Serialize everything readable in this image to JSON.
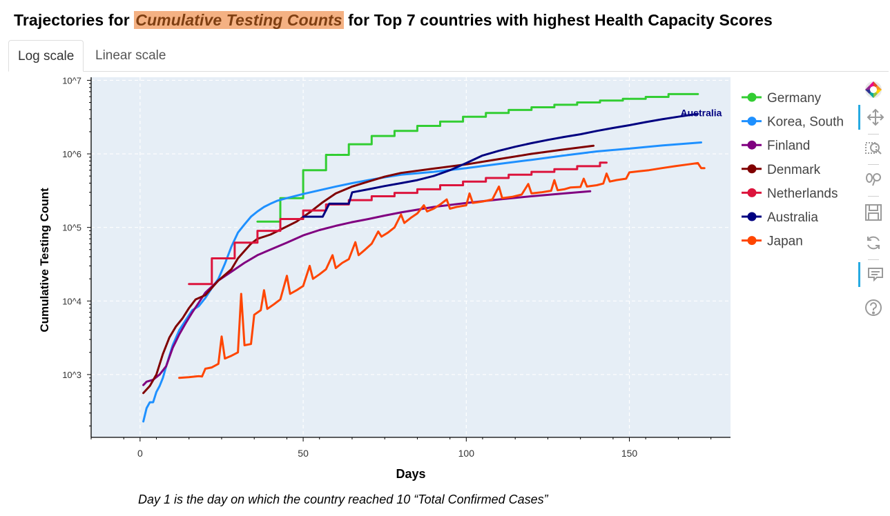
{
  "title": {
    "prefix": "Trajectories for ",
    "highlight": "Cumulative Testing Counts",
    "suffix": " for Top 7 countries with highest Health Capacity Scores"
  },
  "tabs": [
    {
      "label": "Log scale",
      "active": true
    },
    {
      "label": "Linear scale",
      "active": false
    }
  ],
  "footnote": "Day 1 is the day on which the country reached 10 “Total Confirmed Cases”",
  "toolbar": {
    "icons": [
      "bokeh-logo-icon",
      "pan-icon",
      "box-zoom-icon",
      "wheel-zoom-icon",
      "save-icon",
      "reset-icon",
      "hover-icon",
      "help-icon"
    ]
  },
  "chart_data": {
    "type": "line",
    "xlabel": "Days",
    "ylabel": "Cumulative Testing Count",
    "xlim": [
      -15,
      181
    ],
    "ylim": [
      140,
      11000000
    ],
    "y_scale": "log",
    "x_ticks": [
      0,
      50,
      100,
      150
    ],
    "x_tick_labels": [
      "0",
      "50",
      "100",
      "150"
    ],
    "y_ticks": [
      1000,
      10000,
      100000,
      1000000,
      10000000
    ],
    "y_tick_labels": [
      "10^3",
      "10^4",
      "10^5",
      "10^6",
      "10^7"
    ],
    "grid": true,
    "legend_position": "right",
    "annotations": [
      {
        "text": "Australia",
        "x": 172,
        "y": 3600000,
        "color": "#000080"
      }
    ],
    "series": [
      {
        "name": "Germany",
        "color": "#32cd32",
        "step": true,
        "points": [
          [
            36,
            120000
          ],
          [
            43,
            120000
          ],
          [
            43,
            250000
          ],
          [
            50,
            250000
          ],
          [
            50,
            600000
          ],
          [
            57,
            600000
          ],
          [
            57,
            970000
          ],
          [
            64,
            970000
          ],
          [
            64,
            1350000
          ],
          [
            71,
            1350000
          ],
          [
            71,
            1750000
          ],
          [
            78,
            1750000
          ],
          [
            78,
            2050000
          ],
          [
            85,
            2050000
          ],
          [
            85,
            2400000
          ],
          [
            92,
            2400000
          ],
          [
            92,
            2750000
          ],
          [
            99,
            2750000
          ],
          [
            99,
            3200000
          ],
          [
            106,
            3200000
          ],
          [
            106,
            3600000
          ],
          [
            113,
            3600000
          ],
          [
            113,
            3950000
          ],
          [
            120,
            3950000
          ],
          [
            120,
            4300000
          ],
          [
            127,
            4300000
          ],
          [
            127,
            4650000
          ],
          [
            134,
            4650000
          ],
          [
            134,
            5000000
          ],
          [
            141,
            5000000
          ],
          [
            141,
            5300000
          ],
          [
            148,
            5300000
          ],
          [
            148,
            5600000
          ],
          [
            155,
            5600000
          ],
          [
            155,
            5950000
          ],
          [
            162,
            5950000
          ],
          [
            162,
            6500000
          ],
          [
            171,
            6500000
          ]
        ]
      },
      {
        "name": "Korea, South",
        "color": "#1e90ff",
        "step": false,
        "points": [
          [
            1,
            230
          ],
          [
            2,
            350
          ],
          [
            3,
            420
          ],
          [
            4,
            420
          ],
          [
            5,
            580
          ],
          [
            6,
            700
          ],
          [
            7,
            900
          ],
          [
            8,
            1300
          ],
          [
            10,
            2500
          ],
          [
            12,
            4000
          ],
          [
            14,
            5500
          ],
          [
            16,
            7500
          ],
          [
            18,
            8500
          ],
          [
            20,
            11000
          ],
          [
            22,
            15000
          ],
          [
            24,
            20000
          ],
          [
            26,
            32000
          ],
          [
            28,
            55000
          ],
          [
            30,
            85000
          ],
          [
            32,
            110000
          ],
          [
            34,
            140000
          ],
          [
            36,
            165000
          ],
          [
            38,
            190000
          ],
          [
            40,
            210000
          ],
          [
            42,
            230000
          ],
          [
            45,
            250000
          ],
          [
            50,
            285000
          ],
          [
            55,
            320000
          ],
          [
            60,
            360000
          ],
          [
            65,
            400000
          ],
          [
            70,
            440000
          ],
          [
            75,
            480000
          ],
          [
            80,
            520000
          ],
          [
            90,
            570000
          ],
          [
            100,
            640000
          ],
          [
            110,
            730000
          ],
          [
            120,
            830000
          ],
          [
            130,
            950000
          ],
          [
            140,
            1080000
          ],
          [
            150,
            1180000
          ],
          [
            160,
            1300000
          ],
          [
            172,
            1430000
          ]
        ]
      },
      {
        "name": "Finland",
        "color": "#800080",
        "step": false,
        "points": [
          [
            1,
            720
          ],
          [
            2,
            800
          ],
          [
            4,
            850
          ],
          [
            6,
            1000
          ],
          [
            8,
            1300
          ],
          [
            10,
            2300
          ],
          [
            12,
            3500
          ],
          [
            14,
            5000
          ],
          [
            16,
            7000
          ],
          [
            18,
            9500
          ],
          [
            20,
            13000
          ],
          [
            24,
            19000
          ],
          [
            28,
            25000
          ],
          [
            32,
            33000
          ],
          [
            36,
            42000
          ],
          [
            40,
            50000
          ],
          [
            45,
            62000
          ],
          [
            50,
            78000
          ],
          [
            55,
            92000
          ],
          [
            60,
            105000
          ],
          [
            65,
            118000
          ],
          [
            70,
            130000
          ],
          [
            75,
            145000
          ],
          [
            80,
            160000
          ],
          [
            90,
            190000
          ],
          [
            100,
            215000
          ],
          [
            110,
            240000
          ],
          [
            120,
            265000
          ],
          [
            130,
            290000
          ],
          [
            138,
            310000
          ]
        ]
      },
      {
        "name": "Denmark",
        "color": "#800000",
        "step": false,
        "points": [
          [
            1,
            560
          ],
          [
            3,
            700
          ],
          [
            5,
            1000
          ],
          [
            7,
            1900
          ],
          [
            9,
            3200
          ],
          [
            11,
            4500
          ],
          [
            13,
            5800
          ],
          [
            15,
            8000
          ],
          [
            17,
            10500
          ],
          [
            20,
            12000
          ],
          [
            24,
            19000
          ],
          [
            28,
            27000
          ],
          [
            30,
            38000
          ],
          [
            32,
            48000
          ],
          [
            34,
            60000
          ],
          [
            36,
            70000
          ],
          [
            40,
            80000
          ],
          [
            44,
            98000
          ],
          [
            48,
            120000
          ],
          [
            52,
            160000
          ],
          [
            56,
            220000
          ],
          [
            60,
            290000
          ],
          [
            65,
            360000
          ],
          [
            70,
            420000
          ],
          [
            75,
            490000
          ],
          [
            80,
            550000
          ],
          [
            90,
            630000
          ],
          [
            100,
            720000
          ],
          [
            110,
            850000
          ],
          [
            120,
            1000000
          ],
          [
            130,
            1150000
          ],
          [
            139,
            1290000
          ]
        ]
      },
      {
        "name": "Netherlands",
        "color": "#dc143c",
        "step": true,
        "points": [
          [
            15,
            17000
          ],
          [
            22,
            17000
          ],
          [
            22,
            38000
          ],
          [
            29,
            38000
          ],
          [
            29,
            62000
          ],
          [
            36,
            62000
          ],
          [
            36,
            90000
          ],
          [
            43,
            90000
          ],
          [
            43,
            130000
          ],
          [
            50,
            130000
          ],
          [
            50,
            170000
          ],
          [
            57,
            170000
          ],
          [
            57,
            205000
          ],
          [
            64,
            205000
          ],
          [
            64,
            235000
          ],
          [
            71,
            235000
          ],
          [
            71,
            265000
          ],
          [
            78,
            265000
          ],
          [
            78,
            295000
          ],
          [
            85,
            295000
          ],
          [
            85,
            330000
          ],
          [
            92,
            330000
          ],
          [
            92,
            375000
          ],
          [
            99,
            375000
          ],
          [
            99,
            420000
          ],
          [
            106,
            420000
          ],
          [
            106,
            470000
          ],
          [
            113,
            470000
          ],
          [
            113,
            520000
          ],
          [
            120,
            520000
          ],
          [
            120,
            570000
          ],
          [
            127,
            570000
          ],
          [
            127,
            620000
          ],
          [
            134,
            620000
          ],
          [
            134,
            680000
          ],
          [
            141,
            680000
          ],
          [
            141,
            760000
          ],
          [
            143,
            760000
          ]
        ]
      },
      {
        "name": "Australia",
        "color": "#000080",
        "step": false,
        "points": [
          [
            50,
            140000
          ],
          [
            56,
            140000
          ],
          [
            58,
            210000
          ],
          [
            64,
            210000
          ],
          [
            65,
            300000
          ],
          [
            70,
            330000
          ],
          [
            75,
            365000
          ],
          [
            80,
            400000
          ],
          [
            85,
            440000
          ],
          [
            90,
            500000
          ],
          [
            95,
            600000
          ],
          [
            100,
            750000
          ],
          [
            105,
            950000
          ],
          [
            110,
            1100000
          ],
          [
            115,
            1250000
          ],
          [
            120,
            1400000
          ],
          [
            125,
            1550000
          ],
          [
            130,
            1700000
          ],
          [
            135,
            1850000
          ],
          [
            140,
            2050000
          ],
          [
            145,
            2250000
          ],
          [
            150,
            2450000
          ],
          [
            155,
            2700000
          ],
          [
            160,
            2950000
          ],
          [
            165,
            3200000
          ],
          [
            171,
            3500000
          ]
        ]
      },
      {
        "name": "Japan",
        "color": "#ff4500",
        "step": false,
        "points": [
          [
            12,
            900
          ],
          [
            15,
            920
          ],
          [
            18,
            950
          ],
          [
            19,
            940
          ],
          [
            20,
            1200
          ],
          [
            22,
            1250
          ],
          [
            24,
            1400
          ],
          [
            25,
            3300
          ],
          [
            26,
            1650
          ],
          [
            28,
            1800
          ],
          [
            30,
            2000
          ],
          [
            31,
            12500
          ],
          [
            32,
            2500
          ],
          [
            34,
            2600
          ],
          [
            35,
            6500
          ],
          [
            37,
            7500
          ],
          [
            38,
            14000
          ],
          [
            39,
            7800
          ],
          [
            41,
            9000
          ],
          [
            43,
            10500
          ],
          [
            45,
            22000
          ],
          [
            46,
            12500
          ],
          [
            48,
            14000
          ],
          [
            50,
            16000
          ],
          [
            52,
            30000
          ],
          [
            53,
            20000
          ],
          [
            55,
            23000
          ],
          [
            57,
            27000
          ],
          [
            59,
            42000
          ],
          [
            60,
            28000
          ],
          [
            62,
            33000
          ],
          [
            64,
            37000
          ],
          [
            66,
            63000
          ],
          [
            67,
            42000
          ],
          [
            69,
            50000
          ],
          [
            71,
            60000
          ],
          [
            73,
            88000
          ],
          [
            74,
            75000
          ],
          [
            76,
            85000
          ],
          [
            78,
            100000
          ],
          [
            80,
            150000
          ],
          [
            81,
            115000
          ],
          [
            83,
            135000
          ],
          [
            85,
            155000
          ],
          [
            87,
            200000
          ],
          [
            88,
            165000
          ],
          [
            90,
            180000
          ],
          [
            92,
            205000
          ],
          [
            94,
            240000
          ],
          [
            95,
            180000
          ],
          [
            97,
            190000
          ],
          [
            100,
            200000
          ],
          [
            101,
            290000
          ],
          [
            102,
            215000
          ],
          [
            105,
            225000
          ],
          [
            108,
            240000
          ],
          [
            110,
            360000
          ],
          [
            111,
            250000
          ],
          [
            114,
            260000
          ],
          [
            117,
            280000
          ],
          [
            119,
            390000
          ],
          [
            120,
            290000
          ],
          [
            123,
            300000
          ],
          [
            126,
            315000
          ],
          [
            127,
            440000
          ],
          [
            128,
            320000
          ],
          [
            130,
            330000
          ],
          [
            132,
            350000
          ],
          [
            135,
            355000
          ],
          [
            136,
            460000
          ],
          [
            137,
            360000
          ],
          [
            140,
            375000
          ],
          [
            142,
            395000
          ],
          [
            143,
            540000
          ],
          [
            144,
            420000
          ],
          [
            146,
            440000
          ],
          [
            149,
            460000
          ],
          [
            150,
            560000
          ],
          [
            153,
            580000
          ],
          [
            156,
            600000
          ],
          [
            160,
            640000
          ],
          [
            164,
            680000
          ],
          [
            168,
            720000
          ],
          [
            171,
            750000
          ],
          [
            172,
            640000
          ],
          [
            173,
            640000
          ]
        ]
      }
    ]
  }
}
